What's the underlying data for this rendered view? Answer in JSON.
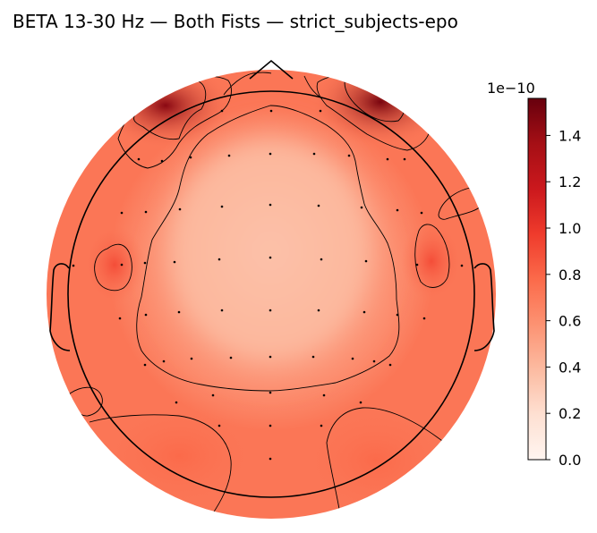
{
  "chart_data": {
    "type": "heatmap",
    "title": "BETA 13-30 Hz — Both Fists — strict_subjects-epo",
    "colorbar": {
      "scale_label": "1e−10",
      "min": 0.0,
      "max": 1.56,
      "ticks": [
        0.0,
        0.2,
        0.4,
        0.6,
        0.8,
        1.0,
        1.2,
        1.4
      ],
      "tick_labels": [
        "0.0",
        "0.2",
        "0.4",
        "0.6",
        "0.8",
        "1.0",
        "1.2",
        "1.4"
      ],
      "colormap": [
        "#fff5f0",
        "#fee0d2",
        "#fcbba1",
        "#fc9272",
        "#fb6a4a",
        "#ef3b2c",
        "#cb181d",
        "#a50f15",
        "#67000d"
      ]
    },
    "topomap_regions": [
      {
        "name": "outer-ring",
        "value": 0.72
      },
      {
        "name": "left-anterior-frontal-peak",
        "value": 1.45
      },
      {
        "name": "right-anterior-frontal-peak",
        "value": 1.5
      },
      {
        "name": "left-temporal-peak",
        "value": 0.9
      },
      {
        "name": "right-temporal-peak",
        "value": 0.9
      },
      {
        "name": "left-occipital",
        "value": 0.78
      },
      {
        "name": "right-occipital",
        "value": 0.78
      },
      {
        "name": "central-plateau",
        "value": 0.36
      }
    ],
    "grid": false
  }
}
